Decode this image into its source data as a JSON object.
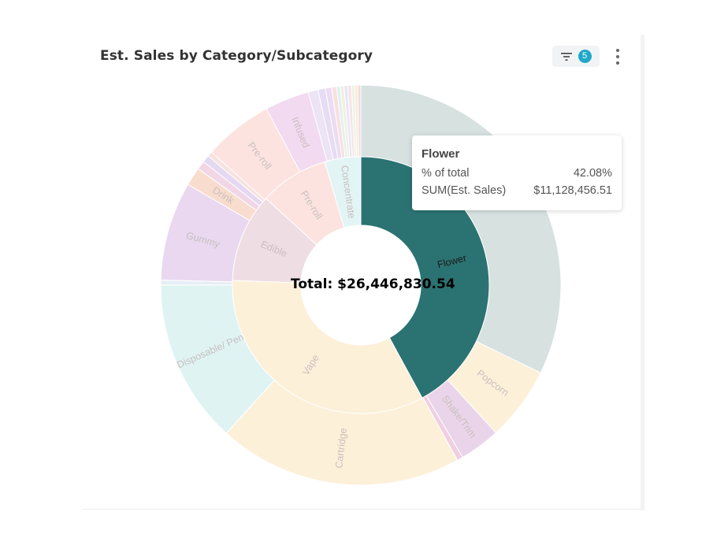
{
  "header": {
    "title": "Est. Sales by Category/Subcategory",
    "filter_count": "5"
  },
  "chart_data": {
    "type": "sunburst",
    "center_label": "Total: $26,446,830.54",
    "colors": {
      "flower_active": "#2b7372",
      "flower_light": "#d6e1e0",
      "vape": "#fdf0d9",
      "disposable": "#dff3f3",
      "edible": "#efdde4",
      "gummy": "#e9d8f0",
      "preroll": "#fce3df",
      "concentrate": "#e2f4f4",
      "shake": "#ead4ea",
      "drink": "#f8dccd"
    },
    "inner_ring": [
      {
        "name": "Flower",
        "value_pct": 42.08,
        "active": true,
        "color": "#2b7372",
        "label": "Flower"
      },
      {
        "name": "Vape",
        "value_pct": 33.5,
        "color": "#fdf0d9",
        "label": "Vape"
      },
      {
        "name": "Edible",
        "value_pct": 11.2,
        "color": "#efdde4",
        "label": "Edible"
      },
      {
        "name": "Pre-roll",
        "value_pct": 8.7,
        "color": "#fce3df",
        "label": "Pre-roll"
      },
      {
        "name": "Concentrate",
        "value_pct": 4.52,
        "color": "#e2f4f4",
        "label": "Concentrate"
      }
    ],
    "outer_ring": [
      {
        "name": "Flower",
        "value_pct": 32.3,
        "color": "#d6e1e0",
        "label": ""
      },
      {
        "name": "Popcorn",
        "value_pct": 6.0,
        "color": "#fdf0d9",
        "label": "Popcorn"
      },
      {
        "name": "Shake/Trim",
        "value_pct": 3.3,
        "color": "#ead4ea",
        "label": "Shake/Trim"
      },
      {
        "name": "",
        "value_pct": 0.48,
        "color": "#f0cfe0",
        "label": ""
      },
      {
        "name": "Cartridge",
        "value_pct": 19.8,
        "color": "#fdf0d9",
        "label": "Cartridge"
      },
      {
        "name": "Disposable/Pen",
        "value_pct": 13.3,
        "color": "#dff3f3",
        "label": "Disposable/ Pen"
      },
      {
        "name": "",
        "value_pct": 0.4,
        "color": "#e8eef6",
        "label": ""
      },
      {
        "name": "Gummy",
        "value_pct": 8.0,
        "color": "#e9d8f0",
        "label": "Gummy"
      },
      {
        "name": "Drink",
        "value_pct": 1.5,
        "color": "#f8dccd",
        "label": "Drink"
      },
      {
        "name": "",
        "value_pct": 0.7,
        "color": "#f1d7e6",
        "label": ""
      },
      {
        "name": "",
        "value_pct": 0.6,
        "color": "#e4d9f1",
        "label": ""
      },
      {
        "name": "",
        "value_pct": 0.4,
        "color": "#f7e2df",
        "label": ""
      },
      {
        "name": "Pre-roll",
        "value_pct": 5.6,
        "color": "#fce3df",
        "label": "Pre-roll"
      },
      {
        "name": "Infused",
        "value_pct": 3.6,
        "color": "#f2daf1",
        "label": "Infused"
      },
      {
        "name": "",
        "value_pct": 0.8,
        "color": "#ece3f5",
        "label": ""
      },
      {
        "name": "",
        "value_pct": 0.6,
        "color": "#e6dcf3",
        "label": ""
      },
      {
        "name": "",
        "value_pct": 0.5,
        "color": "#eadcf3",
        "label": ""
      },
      {
        "name": "",
        "value_pct": 0.4,
        "color": "#f8e0e0",
        "label": ""
      },
      {
        "name": "",
        "value_pct": 0.3,
        "color": "#dff1f0",
        "label": ""
      },
      {
        "name": "",
        "value_pct": 0.3,
        "color": "#f6eedd",
        "label": ""
      },
      {
        "name": "",
        "value_pct": 0.3,
        "color": "#e2eaf7",
        "label": ""
      },
      {
        "name": "",
        "value_pct": 0.3,
        "color": "#f9e3e8",
        "label": ""
      },
      {
        "name": "",
        "value_pct": 0.25,
        "color": "#e9f3e2",
        "label": ""
      },
      {
        "name": "",
        "value_pct": 0.25,
        "color": "#fbe9d8",
        "label": ""
      },
      {
        "name": "",
        "value_pct": 0.25,
        "color": "#f3d9e2",
        "label": ""
      }
    ]
  },
  "tooltip": {
    "title": "Flower",
    "rows": [
      {
        "label": "% of total",
        "value": "42.08%"
      },
      {
        "label": "SUM(Est. Sales)",
        "value": "$11,128,456.51"
      }
    ]
  }
}
